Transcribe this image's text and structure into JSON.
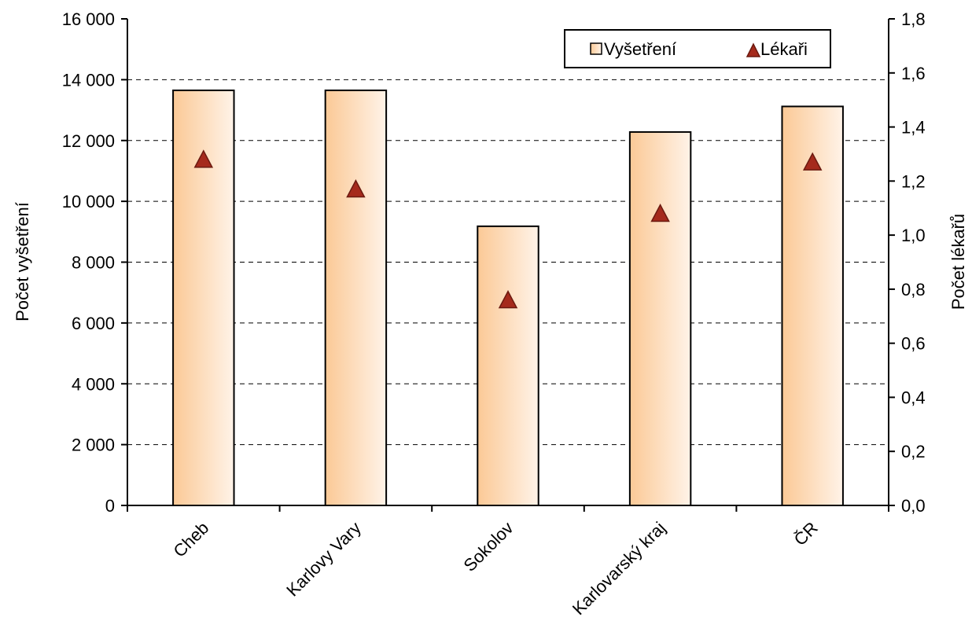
{
  "chart_data": {
    "type": "bar",
    "categories": [
      "Cheb",
      "Karlovy Vary",
      "Sokolov",
      "Karlovarský kraj",
      "ČR"
    ],
    "series": [
      {
        "name": "Vyšetření",
        "type": "bar",
        "axis": "left",
        "values": [
          13650,
          13650,
          9180,
          12280,
          13120
        ]
      },
      {
        "name": "Lékaři",
        "type": "marker",
        "marker": "triangle",
        "axis": "right",
        "values": [
          1.28,
          1.17,
          0.76,
          1.08,
          1.27
        ]
      }
    ],
    "ylabel": "Počet vyšetření",
    "y2label": "Počet lékařů",
    "ylim": [
      0,
      16000
    ],
    "y2lim": [
      0,
      1.8
    ],
    "yticks": [
      "0",
      "2 000",
      "4 000",
      "6 000",
      "8 000",
      "10 000",
      "12 000",
      "14 000",
      "16 000"
    ],
    "y2ticks": [
      "0,0",
      "0,2",
      "0,4",
      "0,6",
      "0,8",
      "1,0",
      "1,2",
      "1,4",
      "1,6",
      "1,8"
    ],
    "grid": "horizontal-dashed",
    "legend_position": "top-right",
    "colors": {
      "bar_fill_start": "#fbc996",
      "bar_fill_end": "#fff3e8",
      "bar_stroke": "#000000",
      "marker_fill": "#a52a1c",
      "marker_stroke": "#6b1a10",
      "grid": "#000000"
    }
  }
}
